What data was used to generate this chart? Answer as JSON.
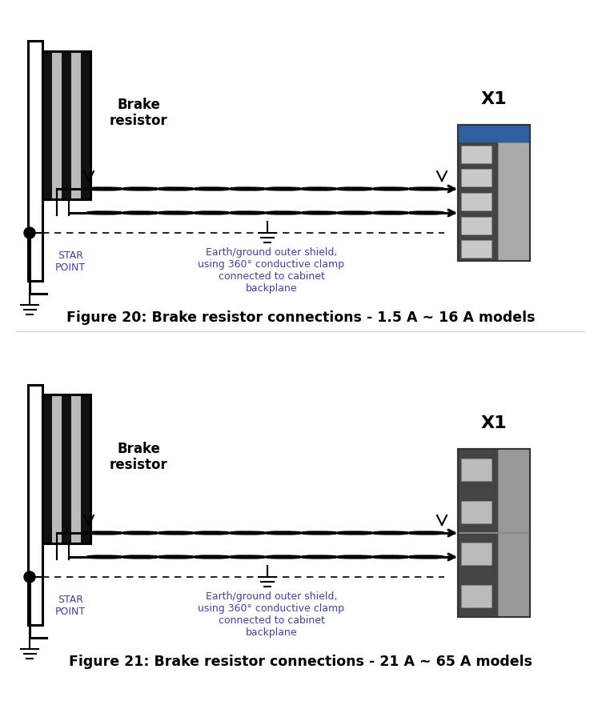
{
  "fig_width": 7.52,
  "fig_height": 8.96,
  "bg_color": "#ffffff",
  "figure_caption_1": "Figure 20: Brake resistor connections - 1.5 A ~ 16 A models",
  "figure_caption_2": "Figure 21: Brake resistor connections - 21 A ~ 65 A models",
  "brake_resistor_label": "Brake\nresistor",
  "x1_label": "X1",
  "star_point_label": "STAR\nPOINT",
  "earth_label": "Earth/ground outer shield,\nusing 360° conductive clamp\nconnected to cabinet\nbackplane",
  "line_color": "#000000",
  "text_color_blue": "#4040b0",
  "caption_color": "#000000",
  "coil_n": 10,
  "coil_amp": 0.012,
  "lw_main": 2.2,
  "lw_thin": 1.5
}
